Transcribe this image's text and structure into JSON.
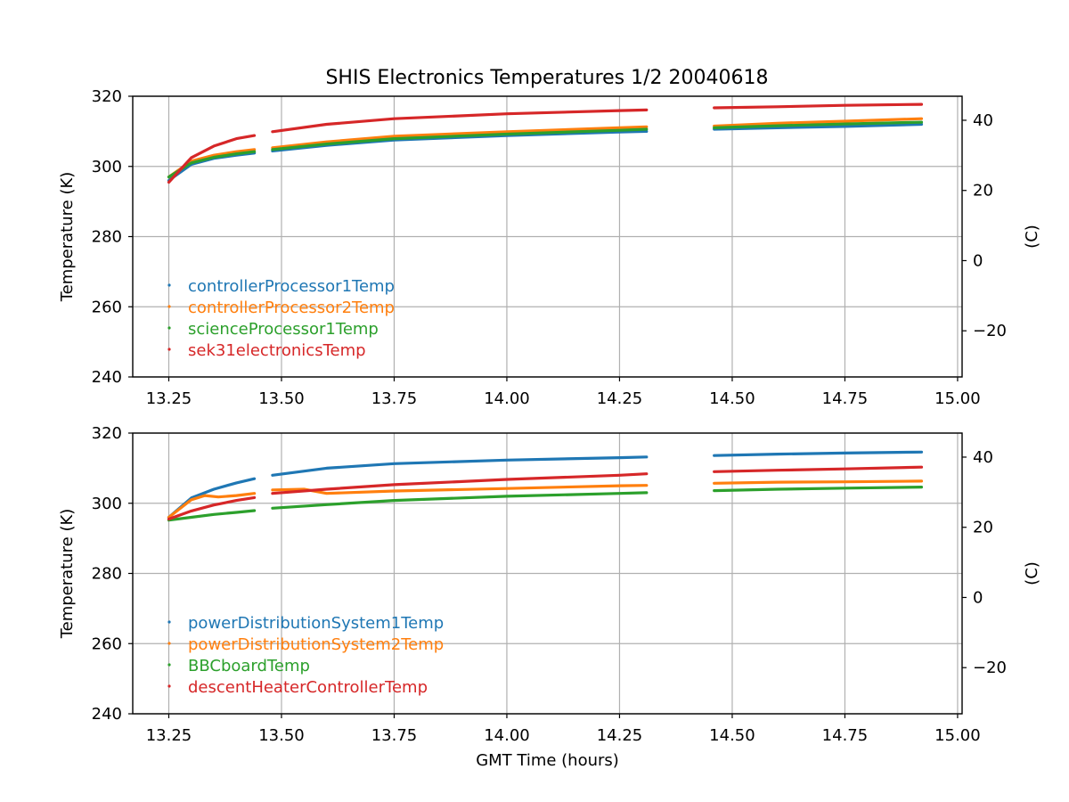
{
  "title": "SHIS Electronics Temperatures 1/2 20040618",
  "chart_data": [
    {
      "type": "scatter",
      "xlabel": "",
      "ylabel": "Temperature (K)",
      "ylabel_right": "(C)",
      "xlim": [
        13.17,
        15.01
      ],
      "ylim": [
        240,
        320
      ],
      "ylim_right_celsius": [
        -33.15,
        46.85
      ],
      "xticks": [
        "13.25",
        "13.50",
        "13.75",
        "14.00",
        "14.25",
        "14.50",
        "14.75",
        "15.00"
      ],
      "yticks": [
        "240",
        "260",
        "280",
        "300",
        "320"
      ],
      "yticks_right": [
        "−20",
        "0",
        "20",
        "40"
      ],
      "grid": true,
      "legend_position": "lower-left",
      "gaps": [
        [
          13.445,
          13.48
        ],
        [
          14.315,
          14.46
        ]
      ],
      "series": [
        {
          "name": "controllerProcessor1Temp",
          "color": "#1f77b4",
          "x": [
            13.25,
            13.3,
            13.35,
            13.4,
            13.44,
            13.48,
            13.6,
            13.75,
            14.0,
            14.25,
            14.31,
            14.46,
            14.6,
            14.75,
            14.92
          ],
          "y": [
            296,
            300.6,
            302.3,
            303.2,
            303.8,
            304.4,
            306.0,
            307.5,
            308.8,
            309.8,
            310.0,
            310.6,
            311.0,
            311.4,
            312.0
          ]
        },
        {
          "name": "controllerProcessor2Temp",
          "color": "#ff7f0e",
          "x": [
            13.25,
            13.3,
            13.35,
            13.4,
            13.44,
            13.48,
            13.6,
            13.75,
            14.0,
            14.25,
            14.31,
            14.46,
            14.6,
            14.75,
            14.92
          ],
          "y": [
            297,
            301.5,
            303.2,
            304.2,
            304.8,
            305.3,
            307.0,
            308.6,
            309.9,
            311.0,
            311.3,
            311.5,
            312.3,
            312.9,
            313.6
          ]
        },
        {
          "name": "scienceProcessor1Temp",
          "color": "#2ca02c",
          "x": [
            13.25,
            13.3,
            13.35,
            13.4,
            13.44,
            13.48,
            13.6,
            13.75,
            14.0,
            14.25,
            14.31,
            14.46,
            14.6,
            14.75,
            14.92
          ],
          "y": [
            297,
            301.0,
            302.6,
            303.6,
            304.2,
            304.8,
            306.4,
            307.9,
            309.2,
            310.3,
            310.6,
            311.0,
            311.6,
            312.1,
            312.6
          ]
        },
        {
          "name": "sek31electronicsTemp",
          "color": "#d62728",
          "x": [
            13.25,
            13.3,
            13.35,
            13.4,
            13.44,
            13.48,
            13.6,
            13.75,
            14.0,
            14.25,
            14.31,
            14.46,
            14.6,
            14.75,
            14.92
          ],
          "y": [
            295.5,
            302.5,
            305.8,
            307.9,
            308.8,
            309.9,
            312.0,
            313.6,
            315.0,
            315.9,
            316.1,
            316.7,
            317.0,
            317.4,
            317.7
          ]
        }
      ]
    },
    {
      "type": "scatter",
      "xlabel": "GMT Time (hours)",
      "ylabel": "Temperature (K)",
      "ylabel_right": "(C)",
      "xlim": [
        13.17,
        15.01
      ],
      "ylim": [
        240,
        320
      ],
      "ylim_right_celsius": [
        -33.15,
        46.85
      ],
      "xticks": [
        "13.25",
        "13.50",
        "13.75",
        "14.00",
        "14.25",
        "14.50",
        "14.75",
        "15.00"
      ],
      "yticks": [
        "240",
        "260",
        "280",
        "300",
        "320"
      ],
      "yticks_right": [
        "−20",
        "0",
        "20",
        "40"
      ],
      "grid": true,
      "legend_position": "lower-left",
      "gaps": [
        [
          13.445,
          13.48
        ],
        [
          14.315,
          14.46
        ]
      ],
      "series": [
        {
          "name": "powerDistributionSystem1Temp",
          "color": "#1f77b4",
          "x": [
            13.25,
            13.3,
            13.35,
            13.4,
            13.44,
            13.48,
            13.6,
            13.75,
            14.0,
            14.25,
            14.31,
            14.46,
            14.6,
            14.75,
            14.92
          ],
          "y": [
            296,
            301.5,
            304.0,
            305.8,
            307.0,
            308.0,
            310.0,
            311.3,
            312.3,
            313.0,
            313.2,
            313.6,
            314.0,
            314.3,
            314.6
          ]
        },
        {
          "name": "powerDistributionSystem2Temp",
          "color": "#ff7f0e",
          "x": [
            13.25,
            13.3,
            13.33,
            13.36,
            13.4,
            13.44,
            13.48,
            13.55,
            13.6,
            13.75,
            14.0,
            14.25,
            14.31,
            14.46,
            14.6,
            14.75,
            14.92
          ],
          "y": [
            296,
            301.0,
            302.2,
            301.8,
            302.2,
            302.8,
            303.8,
            304.0,
            302.8,
            303.5,
            304.2,
            305.0,
            305.1,
            305.7,
            306.0,
            306.1,
            306.3
          ]
        },
        {
          "name": "BBCboardTemp",
          "color": "#2ca02c",
          "x": [
            13.25,
            13.3,
            13.35,
            13.4,
            13.44,
            13.48,
            13.6,
            13.75,
            14.0,
            14.25,
            14.31,
            14.46,
            14.6,
            14.75,
            14.92
          ],
          "y": [
            295.2,
            296.0,
            296.8,
            297.4,
            297.9,
            298.6,
            299.6,
            300.8,
            302.0,
            302.8,
            303.0,
            303.6,
            304.0,
            304.3,
            304.6
          ]
        },
        {
          "name": "descentHeaterControllerTemp",
          "color": "#d62728",
          "x": [
            13.25,
            13.3,
            13.35,
            13.4,
            13.44,
            13.48,
            13.6,
            13.75,
            14.0,
            14.25,
            14.31,
            14.46,
            14.6,
            14.75,
            14.92
          ],
          "y": [
            295.5,
            297.8,
            299.5,
            300.8,
            301.6,
            302.8,
            304.0,
            305.3,
            306.8,
            308.0,
            308.4,
            309.0,
            309.4,
            309.8,
            310.3
          ]
        }
      ]
    }
  ]
}
